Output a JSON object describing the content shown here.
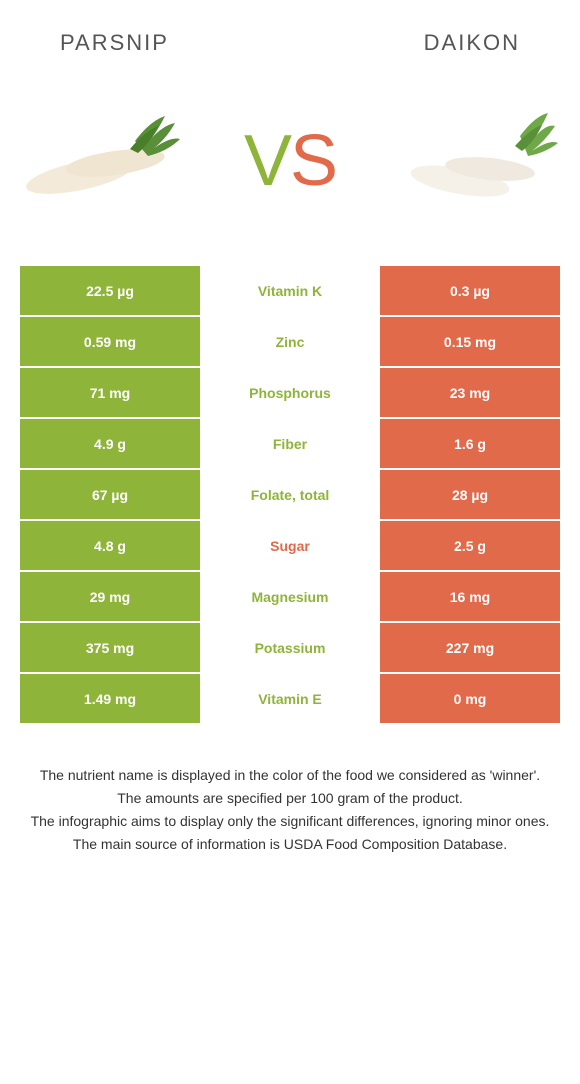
{
  "header": {
    "left": "Parsnip",
    "right": "Daikon"
  },
  "vs": {
    "v": "V",
    "s": "S"
  },
  "colors": {
    "left": "#8fb43a",
    "right": "#e06a4a",
    "mid_bg": "#ffffff",
    "left_text": "#ffffff",
    "right_text": "#ffffff",
    "winner_left": "#8fb43a",
    "winner_right": "#e06a4a"
  },
  "rows": [
    {
      "left": "22.5 µg",
      "label": "Vitamin K",
      "right": "0.3 µg",
      "winner": "left"
    },
    {
      "left": "0.59 mg",
      "label": "Zinc",
      "right": "0.15 mg",
      "winner": "left"
    },
    {
      "left": "71 mg",
      "label": "Phosphorus",
      "right": "23 mg",
      "winner": "left"
    },
    {
      "left": "4.9 g",
      "label": "Fiber",
      "right": "1.6 g",
      "winner": "left"
    },
    {
      "left": "67 µg",
      "label": "Folate, total",
      "right": "28 µg",
      "winner": "left"
    },
    {
      "left": "4.8 g",
      "label": "Sugar",
      "right": "2.5 g",
      "winner": "right"
    },
    {
      "left": "29 mg",
      "label": "Magnesium",
      "right": "16 mg",
      "winner": "left"
    },
    {
      "left": "375 mg",
      "label": "Potassium",
      "right": "227 mg",
      "winner": "left"
    },
    {
      "left": "1.49 mg",
      "label": "Vitamin E",
      "right": "0 mg",
      "winner": "left"
    }
  ],
  "footer": {
    "line1": "The nutrient name is displayed in the color of the food we considered as 'winner'.",
    "line2": "The amounts are specified per 100 gram of the product.",
    "line3": "The infographic aims to display only the significant differences, ignoring minor ones.",
    "line4": "The main source of information is USDA Food Composition Database."
  }
}
